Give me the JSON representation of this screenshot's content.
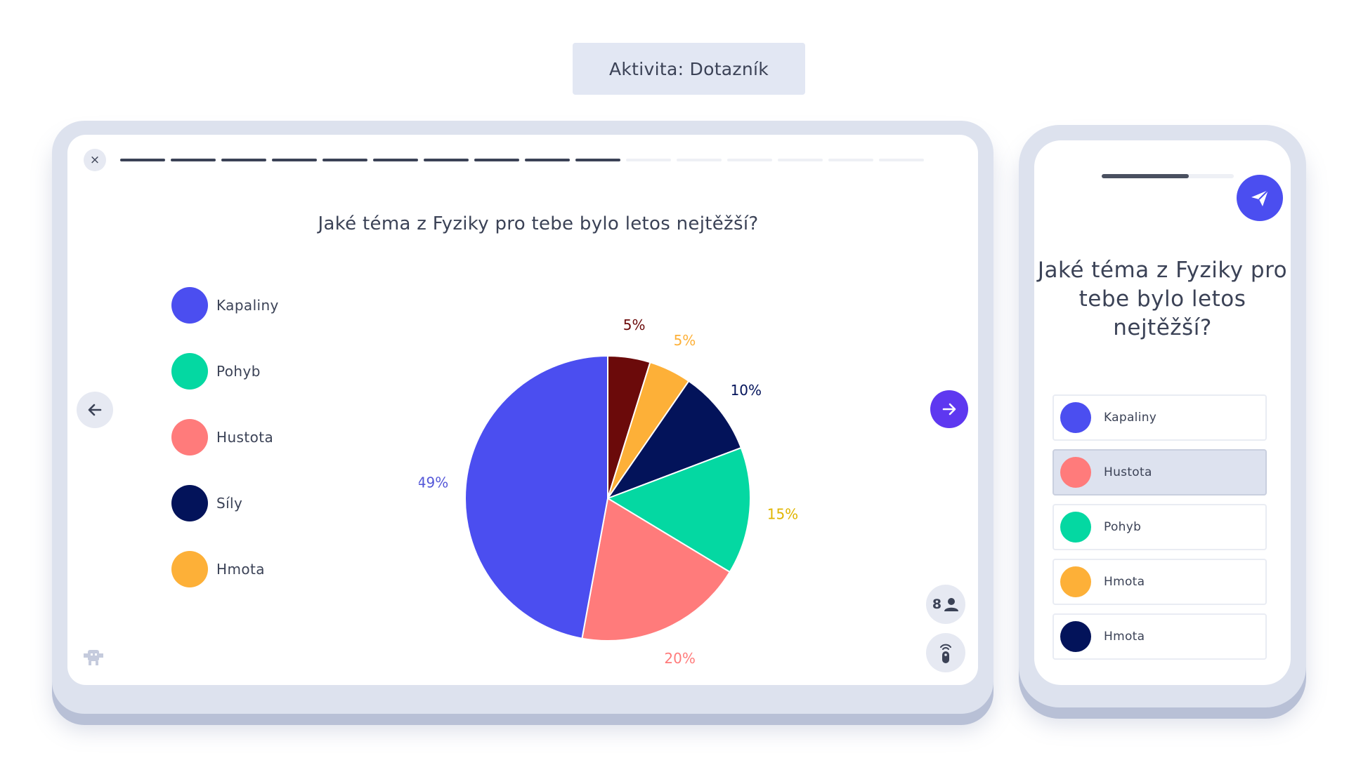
{
  "header": {
    "activity_label": "Aktivita: Dotazník"
  },
  "colors": {
    "kapaliny": "#4b4ef0",
    "pohyb": "#04d8a2",
    "hustota": "#ff7b7b",
    "sily": "#03135a",
    "hmota": "#fdb038",
    "dark_red": "#6b0a0a",
    "accent": "#5e38f0"
  },
  "tablet": {
    "close_glyph": "×",
    "progress": {
      "total_segments": 16,
      "completed_segments": 10
    },
    "question": "Jaké téma z Fyziky pro tebe bylo letos nejtěžší?",
    "legend": [
      {
        "label": "Kapaliny",
        "color": "#4b4ef0"
      },
      {
        "label": "Pohyb",
        "color": "#04d8a2"
      },
      {
        "label": "Hustota",
        "color": "#ff7b7b"
      },
      {
        "label": "Síly",
        "color": "#03135a"
      },
      {
        "label": "Hmota",
        "color": "#fdb038"
      }
    ],
    "participants_count": "8"
  },
  "chart_data": {
    "type": "pie",
    "slices": [
      {
        "value": 5,
        "label": "5%",
        "color": "#6b0a0a",
        "label_color": "#6b0a0a"
      },
      {
        "value": 5,
        "label": "5%",
        "color": "#fdb038",
        "label_color": "#fdb038"
      },
      {
        "value": 10,
        "label": "10%",
        "color": "#03135a",
        "label_color": "#03135a"
      },
      {
        "value": 15,
        "label": "15%",
        "color": "#04d8a2",
        "label_color": "#e0b500"
      },
      {
        "value": 20,
        "label": "20%",
        "color": "#ff7b7b",
        "label_color": "#ff7b7b"
      },
      {
        "value": 49,
        "label": "49%",
        "color": "#4b4ef0",
        "label_color": "#5558d8"
      }
    ]
  },
  "phone": {
    "progress_fraction": 0.66,
    "question": "Jaké téma z Fyziky pro tebe bylo letos nejtěžší?",
    "options": [
      {
        "label": "Kapaliny",
        "color": "#4b4ef0",
        "selected": false
      },
      {
        "label": "Hustota",
        "color": "#ff7b7b",
        "selected": true
      },
      {
        "label": "Pohyb",
        "color": "#04d8a2",
        "selected": false
      },
      {
        "label": "Hmota",
        "color": "#fdb038",
        "selected": false
      },
      {
        "label": "Hmota",
        "color": "#03135a",
        "selected": false
      }
    ]
  }
}
